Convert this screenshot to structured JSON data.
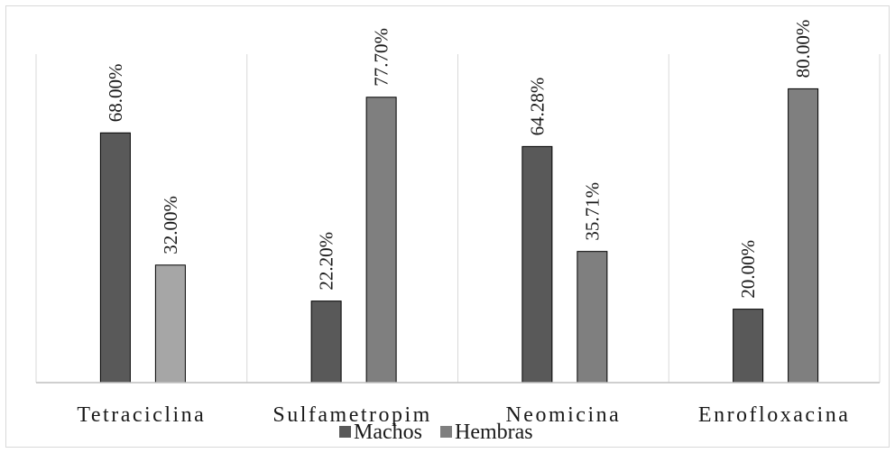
{
  "chart_data": {
    "type": "bar",
    "categories": [
      "Tetraciclina",
      "Sulfametropim",
      "Neomicina",
      "Enrofloxacina"
    ],
    "series": [
      {
        "name": "Machos",
        "values": [
          68.0,
          22.2,
          64.28,
          20.0
        ],
        "labels": [
          "68.00%",
          "22.20%",
          "64.28%",
          "20.00%"
        ],
        "color": "#595959"
      },
      {
        "name": "Hembras",
        "values": [
          32.0,
          77.7,
          35.71,
          80.0
        ],
        "labels": [
          "32.00%",
          "77.70%",
          "35.71%",
          "80.00%"
        ],
        "color": "#7f7f7f",
        "point_colors": [
          "#a6a6a6",
          "#7f7f7f",
          "#7f7f7f",
          "#7f7f7f"
        ]
      }
    ],
    "title": "",
    "xlabel": "",
    "ylabel": "",
    "ylim": [
      0,
      100
    ],
    "grid": false,
    "legend": "bottom"
  }
}
